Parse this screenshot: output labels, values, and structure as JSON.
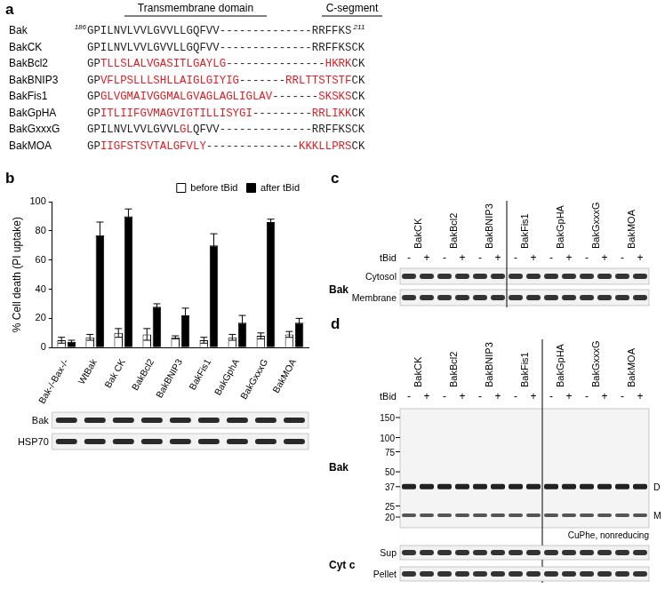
{
  "chart_data": {
    "type": "bar",
    "y_label": "% Cell death (PI uptake)",
    "categories": [
      "Bak-/-Bax-/-",
      "WtBak",
      "Bak CK",
      "BakBcl2",
      "BakBNIP3",
      "BakFis1",
      "BakGphA",
      "BakGxxxG",
      "BakMOA"
    ],
    "series": [
      {
        "name": "before tBid",
        "color": "#ffffff",
        "values": [
          5,
          7,
          10,
          9,
          7,
          5,
          7,
          8,
          9
        ],
        "errors": [
          2,
          2,
          3,
          4,
          1,
          2,
          2,
          2,
          2
        ]
      },
      {
        "name": "after tBid",
        "color": "#000000",
        "values": [
          4,
          77,
          90,
          28,
          22,
          70,
          17,
          86,
          17
        ],
        "errors": [
          1,
          9,
          5,
          2,
          5,
          8,
          5,
          2,
          3
        ]
      }
    ],
    "ylim": [
      0,
      100
    ],
    "yticks": [
      0,
      20,
      40,
      60,
      80,
      100
    ],
    "grid": false,
    "legend": "top-right"
  },
  "panel_a": {
    "label": "a",
    "tm_header": "Transmembrane domain",
    "c_header": "C-segment",
    "rows": [
      {
        "name": "Bak",
        "start": 186,
        "end": 211,
        "segments": [
          {
            "text": "GPILNVLVVLGVVLLGQFVV--------------RRFFKS",
            "color": "#231f20"
          }
        ]
      },
      {
        "name": "BakCK",
        "segments": [
          {
            "text": "GPILNVLVVLGVVLLGQFVV--------------RRFFKSCK",
            "color": "#231f20"
          }
        ]
      },
      {
        "name": "BakBcl2",
        "segments": [
          {
            "text": "GP",
            "color": "#231f20"
          },
          {
            "text": "TLLSLALVGASITLGAYLG",
            "color": "#e31e24"
          },
          {
            "text": "---------------",
            "color": "#231f20"
          },
          {
            "text": "HKRK",
            "color": "#e31e24"
          },
          {
            "text": "CK",
            "color": "#231f20"
          }
        ]
      },
      {
        "name": "BakBNIP3",
        "segments": [
          {
            "text": "GP",
            "color": "#231f20"
          },
          {
            "text": "VFLPSLLLSHLLAIGLGIYIG",
            "color": "#e31e24"
          },
          {
            "text": "-------",
            "color": "#231f20"
          },
          {
            "text": "RRLTTSTSTF",
            "color": "#e31e24"
          },
          {
            "text": "CK",
            "color": "#231f20"
          }
        ]
      },
      {
        "name": "BakFis1",
        "segments": [
          {
            "text": "GP",
            "color": "#231f20"
          },
          {
            "text": "GLVGMAIVGGMALGVAGLAGLIGLAV",
            "color": "#e31e24"
          },
          {
            "text": "-------",
            "color": "#231f20"
          },
          {
            "text": "SKSKS",
            "color": "#e31e24"
          },
          {
            "text": "CK",
            "color": "#231f20"
          }
        ]
      },
      {
        "name": "BakGpHA",
        "segments": [
          {
            "text": "GP",
            "color": "#231f20"
          },
          {
            "text": "ITLIIFGVMAGVIGTILLISYGI",
            "color": "#e31e24"
          },
          {
            "text": "---------",
            "color": "#231f20"
          },
          {
            "text": "RRLIKK",
            "color": "#e31e24"
          },
          {
            "text": "CK",
            "color": "#231f20"
          }
        ]
      },
      {
        "name": "BakGxxxG",
        "segments": [
          {
            "text": "GPILNVLVVLGVVL",
            "color": "#231f20"
          },
          {
            "text": "GL",
            "color": "#e31e24"
          },
          {
            "text": "QFVV--------------RRFFKSCK",
            "color": "#231f20"
          }
        ]
      },
      {
        "name": "BakMOA",
        "segments": [
          {
            "text": "GP",
            "color": "#231f20"
          },
          {
            "text": "IIGFSTSVTALGFVLY",
            "color": "#e31e24"
          },
          {
            "text": "--------------",
            "color": "#231f20"
          },
          {
            "text": "KKKLLPRS",
            "color": "#e31e24"
          },
          {
            "text": "CK",
            "color": "#231f20"
          }
        ]
      }
    ]
  },
  "panel_b": {
    "label": "b",
    "blot_rows": [
      "Bak",
      "HSP70"
    ]
  },
  "panel_c": {
    "label": "c",
    "lanes": [
      "BakCK",
      "BakBcl2",
      "BakBNIP3",
      "BakFis1",
      "BakGpHA",
      "BakGxxxG",
      "BakMOA"
    ],
    "treatment": "tBid",
    "marks": [
      "-",
      "+"
    ],
    "target": "Bak",
    "rows": [
      "Cytosol",
      "Membrane"
    ],
    "break_after": "BakBNIP3"
  },
  "panel_d": {
    "label": "d",
    "lanes": [
      "BakCK",
      "BakBcl2",
      "BakBNIP3",
      "BakFis1",
      "BakGpHA",
      "BakGxxxG",
      "BakMOA"
    ],
    "treatment": "tBid",
    "marks": [
      "-",
      "+"
    ],
    "target": "Bak",
    "markers": [
      150,
      100,
      75,
      50,
      37,
      25,
      20
    ],
    "bands": [
      "D",
      "M"
    ],
    "note": "CuPhe, nonreducing",
    "break_after": "BakFis1",
    "second_target": "Cyt c",
    "second_rows": [
      "Sup",
      "Pellet"
    ]
  }
}
